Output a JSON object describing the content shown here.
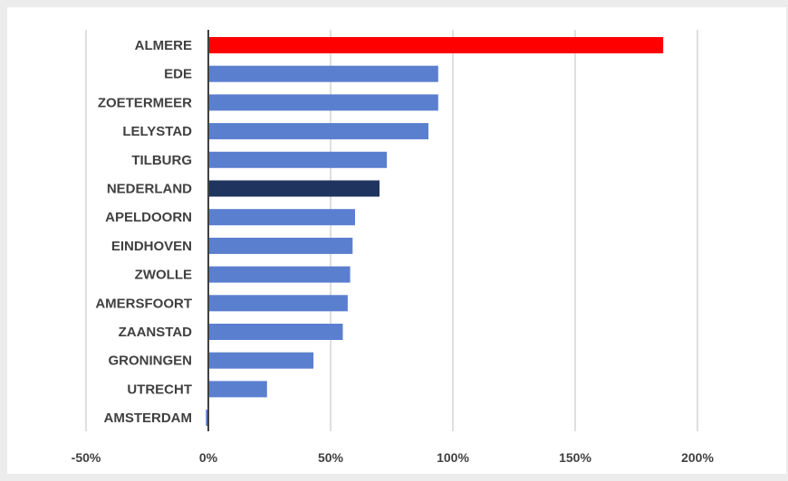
{
  "chart_data": {
    "type": "bar",
    "orientation": "horizontal",
    "title": "",
    "xlabel": "",
    "ylabel": "",
    "xlim": [
      -50,
      200
    ],
    "x_ticks": [
      -50,
      0,
      50,
      100,
      150,
      200
    ],
    "x_tick_labels": [
      "-50%",
      "0%",
      "50%",
      "100%",
      "150%",
      "200%"
    ],
    "grid": true,
    "legend": "none",
    "categories": [
      "ALMERE",
      "EDE",
      "ZOETERMEER",
      "LELYSTAD",
      "TILBURG",
      "NEDERLAND",
      "APELDOORN",
      "EINDHOVEN",
      "ZWOLLE",
      "AMERSFOORT",
      "ZAANSTAD",
      "GRONINGEN",
      "UTRECHT",
      "AMSTERDAM"
    ],
    "values": [
      186,
      94,
      94,
      90,
      73,
      70,
      60,
      59,
      58,
      57,
      55,
      43,
      24,
      -1
    ],
    "colors": {
      "default": "#5b7fcf",
      "highlight": "#ff0000",
      "national": "#1f3560"
    },
    "bar_colors": [
      "highlight",
      "default",
      "default",
      "default",
      "default",
      "national",
      "default",
      "default",
      "default",
      "default",
      "default",
      "default",
      "default",
      "default"
    ]
  }
}
